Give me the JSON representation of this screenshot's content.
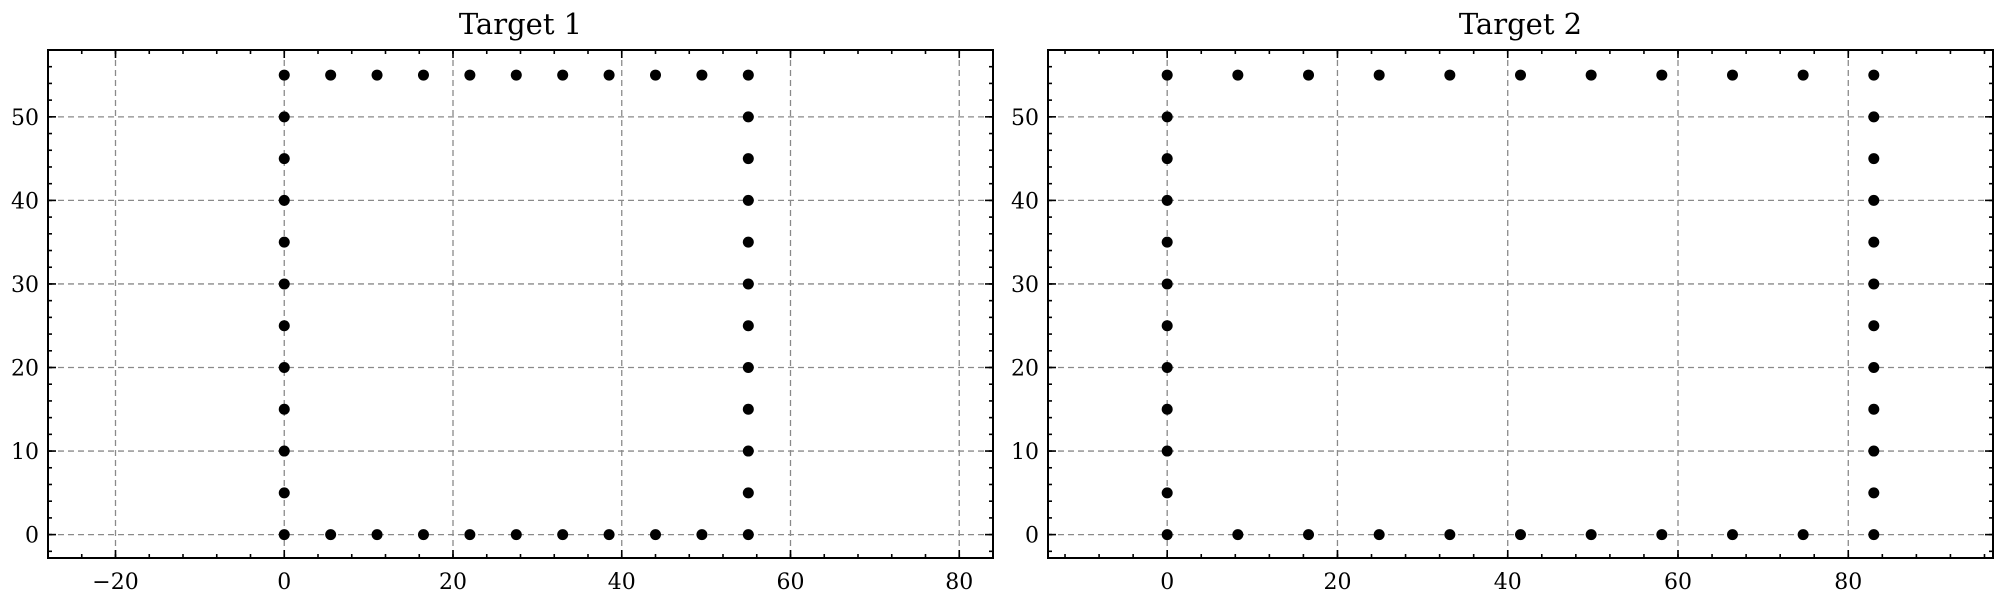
{
  "chart_data": [
    {
      "type": "scatter",
      "title": "Target 1",
      "xlabel": "",
      "ylabel": "",
      "xlim": [
        -28,
        84
      ],
      "ylim": [
        -2.8,
        58
      ],
      "xticks": [
        -20,
        0,
        20,
        40,
        60,
        80
      ],
      "yticks": [
        0,
        10,
        20,
        30,
        40,
        50
      ],
      "grid": true,
      "point_color": "#000000",
      "series": [
        {
          "x": [
            0,
            0,
            0,
            0,
            0,
            0,
            0,
            0,
            0,
            0,
            0,
            0,
            5.5,
            11,
            16.5,
            22,
            27.5,
            33,
            38.5,
            44,
            49.5,
            55,
            55,
            55,
            55,
            55,
            55,
            55,
            55,
            55,
            55,
            55,
            55,
            5.5,
            11,
            16.5,
            22,
            27.5,
            33,
            38.5,
            44,
            49.5
          ],
          "y": [
            0,
            5,
            10,
            15,
            20,
            25,
            30,
            35,
            40,
            45,
            50,
            55,
            55,
            55,
            55,
            55,
            55,
            55,
            55,
            55,
            55,
            55,
            50,
            45,
            40,
            35,
            30,
            25,
            20,
            15,
            10,
            5,
            0,
            0,
            0,
            0,
            0,
            0,
            0,
            0,
            0,
            0
          ]
        }
      ]
    },
    {
      "type": "scatter",
      "title": "Target 2",
      "xlabel": "",
      "ylabel": "",
      "xlim": [
        -14,
        97
      ],
      "ylim": [
        -2.8,
        58
      ],
      "xticks": [
        0,
        20,
        40,
        60,
        80
      ],
      "yticks": [
        0,
        10,
        20,
        30,
        40,
        50
      ],
      "grid": true,
      "point_color": "#000000",
      "series": [
        {
          "x": [
            0,
            0,
            0,
            0,
            0,
            0,
            0,
            0,
            0,
            0,
            0,
            0,
            8.3,
            16.6,
            24.9,
            33.2,
            41.5,
            49.8,
            58.1,
            66.4,
            74.7,
            83,
            83,
            83,
            83,
            83,
            83,
            83,
            83,
            83,
            83,
            83,
            83,
            8.3,
            16.6,
            24.9,
            33.2,
            41.5,
            49.8,
            58.1,
            66.4,
            74.7
          ],
          "y": [
            0,
            5,
            10,
            15,
            20,
            25,
            30,
            35,
            40,
            45,
            50,
            55,
            55,
            55,
            55,
            55,
            55,
            55,
            55,
            55,
            55,
            55,
            50,
            45,
            40,
            35,
            30,
            25,
            20,
            15,
            10,
            5,
            0,
            0,
            0,
            0,
            0,
            0,
            0,
            0,
            0,
            0
          ]
        }
      ]
    }
  ]
}
